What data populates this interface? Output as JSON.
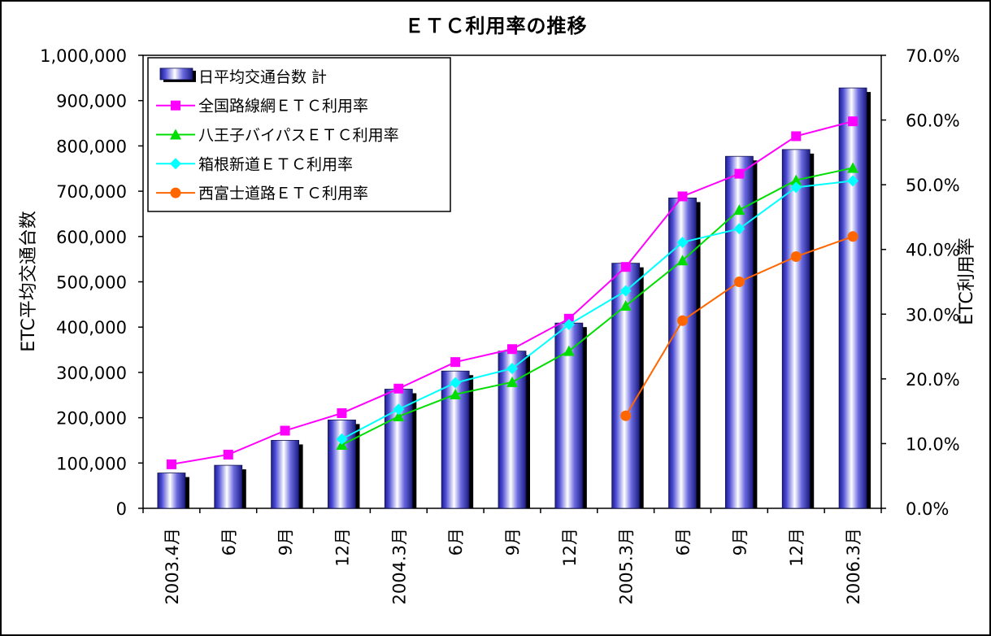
{
  "chart_data": {
    "type": "bar",
    "title": "ＥＴＣ利用率の推移",
    "categories": [
      "2003.4月",
      "6月",
      "9月",
      "12月",
      "2004.3月",
      "6月",
      "9月",
      "12月",
      "2005.3月",
      "6月",
      "9月",
      "12月",
      "2006.3月"
    ],
    "ylabel": "ETC平均交通台数",
    "y2label": "ETC利用率",
    "ylim": [
      0,
      1000000
    ],
    "y2lim": [
      0,
      70
    ],
    "yticks": [
      "0",
      "100,000",
      "200,000",
      "300,000",
      "400,000",
      "500,000",
      "600,000",
      "700,000",
      "800,000",
      "900,000",
      "1,000,000"
    ],
    "y2ticks": [
      "0.0%",
      "10.0%",
      "20.0%",
      "30.0%",
      "40.0%",
      "50.0%",
      "60.0%",
      "70.0%"
    ],
    "grid": false,
    "legend_position": "top-left",
    "bars": {
      "name": "日平均交通台数  計",
      "color": "#3c3cd2",
      "values": [
        78000,
        95000,
        150000,
        195000,
        263000,
        303000,
        347000,
        409000,
        541000,
        685000,
        777000,
        792000,
        928000
      ]
    },
    "series": [
      {
        "name": "全国路線網ＥＴＣ利用率",
        "color": "#ff00ff",
        "marker": "square",
        "axis": "y2",
        "values": [
          6.8,
          8.3,
          12.0,
          14.7,
          18.5,
          22.6,
          24.6,
          29.3,
          37.3,
          48.2,
          51.7,
          57.5,
          59.8
        ]
      },
      {
        "name": "八王子バイパスＥＴＣ利用率",
        "color": "#00dd00",
        "marker": "triangle",
        "axis": "y2",
        "values": [
          null,
          null,
          null,
          9.8,
          14.2,
          17.6,
          19.5,
          24.3,
          31.3,
          38.3,
          46.1,
          50.7,
          52.6
        ]
      },
      {
        "name": "箱根新道ＥＴＣ利用率",
        "color": "#00ffff",
        "marker": "diamond",
        "axis": "y2",
        "values": [
          null,
          null,
          null,
          10.7,
          15.3,
          19.4,
          21.6,
          28.4,
          33.6,
          41.1,
          43.2,
          49.6,
          50.6
        ]
      },
      {
        "name": "西富士道路ＥＴＣ利用率",
        "color": "#ff6600",
        "marker": "circle",
        "axis": "y2",
        "values": [
          null,
          null,
          null,
          null,
          null,
          null,
          null,
          null,
          14.3,
          29.0,
          35.0,
          38.9,
          42.0
        ]
      }
    ]
  }
}
